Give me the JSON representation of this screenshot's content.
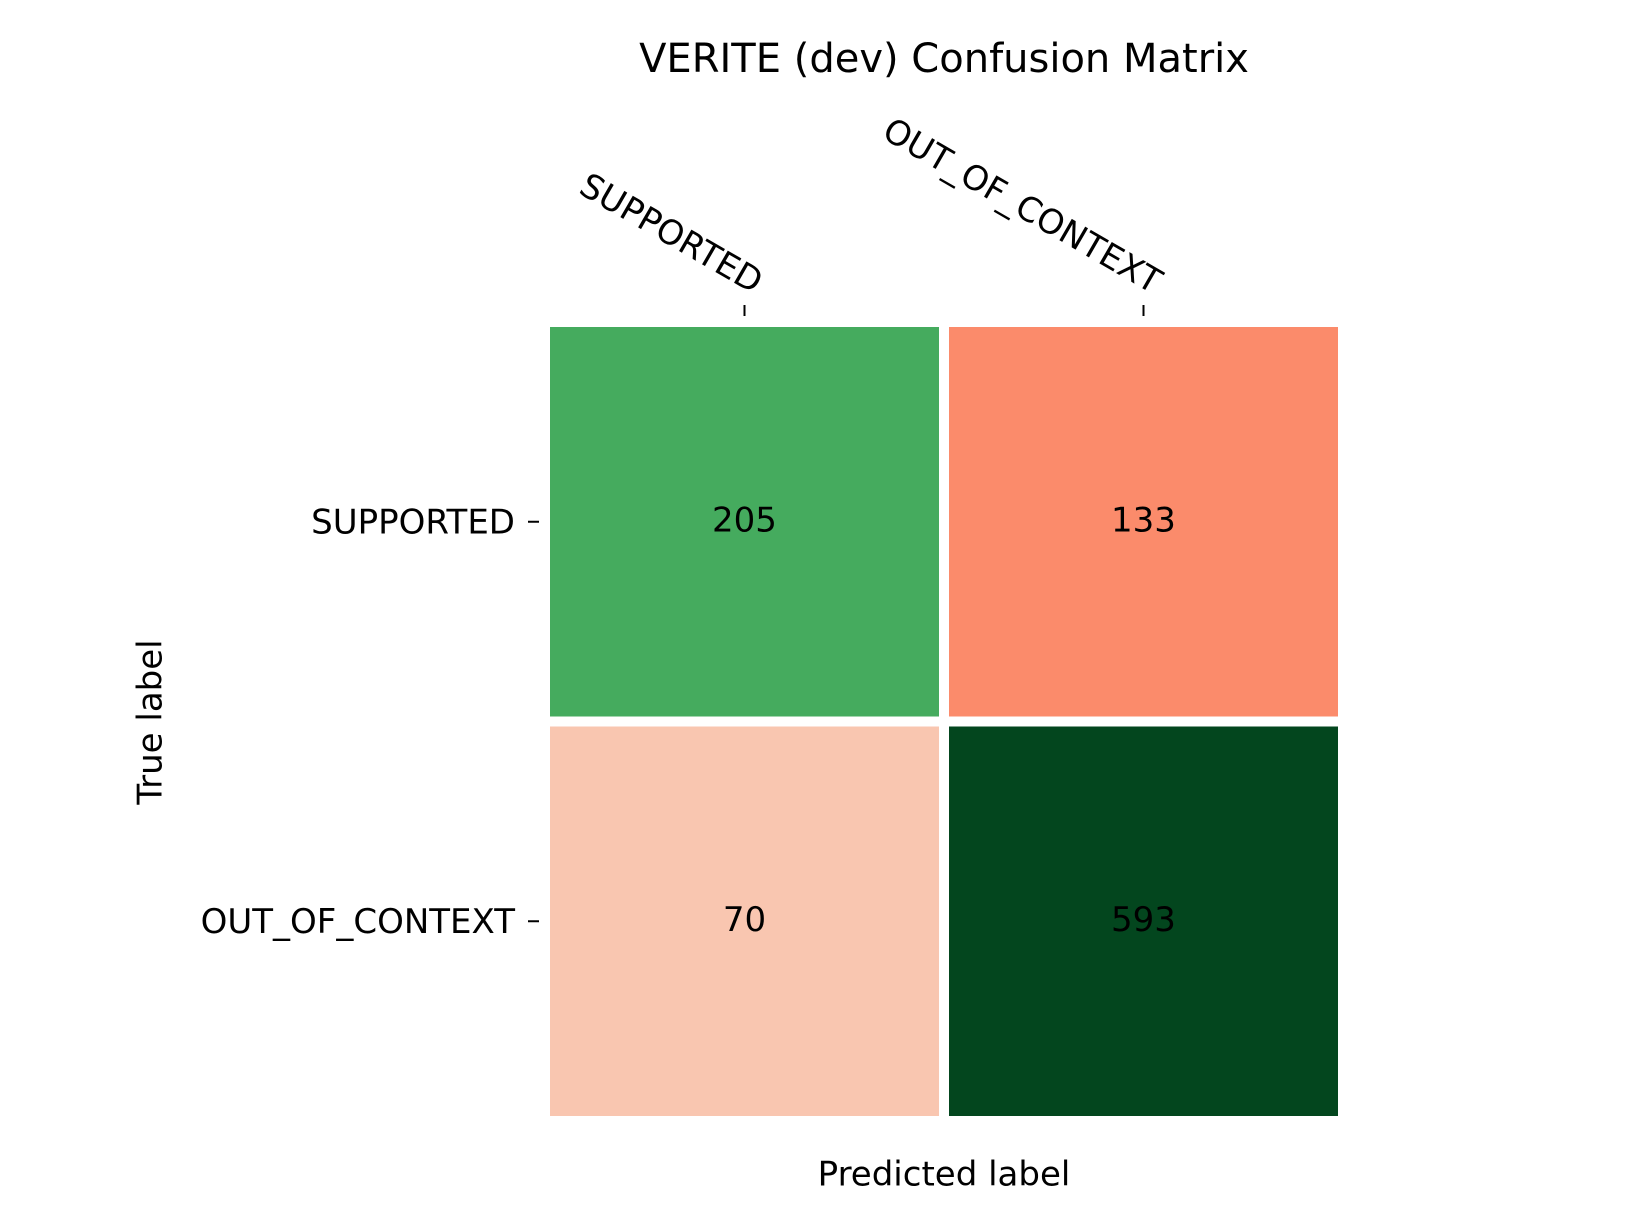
{
  "chart_data": {
    "type": "heatmap",
    "title": "VERITE (dev) Confusion Matrix",
    "x_label": "Predicted label",
    "y_label": "True label",
    "x_categories": [
      "SUPPORTED",
      "OUT_OF_CONTEXT"
    ],
    "y_categories": [
      "SUPPORTED",
      "OUT_OF_CONTEXT"
    ],
    "values": [
      [
        205,
        133
      ],
      [
        70,
        593
      ]
    ],
    "colors": [
      [
        "#45ab5e",
        "#fb8b6b"
      ],
      [
        "#f9c6b0",
        "#03461e"
      ]
    ],
    "text_colors": [
      [
        "#000000",
        "#ffffff"
      ],
      [
        "#ffffff",
        "#ffffff"
      ]
    ]
  }
}
